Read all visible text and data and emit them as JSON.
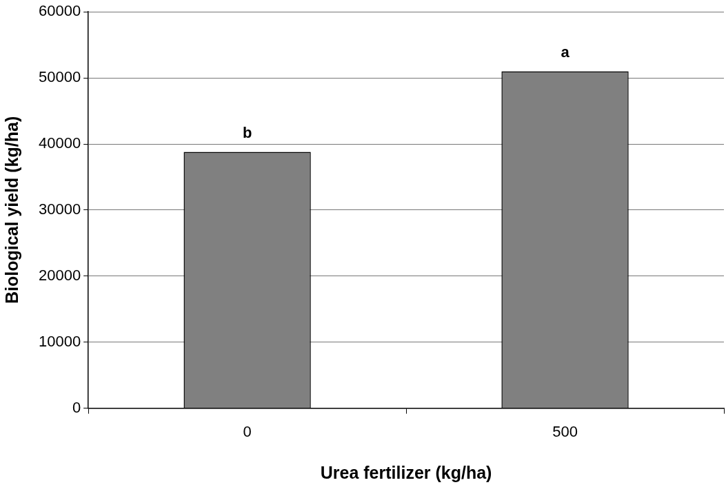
{
  "chart_data": {
    "type": "bar",
    "xlabel": "Urea fertilizer (kg/ha)",
    "ylabel": "Biological yield (kg/ha)",
    "categories": [
      "0",
      "500"
    ],
    "values": [
      38800,
      51000
    ],
    "color": "#808080",
    "ylim": [
      0,
      60000
    ],
    "yticks": [
      0,
      10000,
      20000,
      30000,
      40000,
      50000,
      60000
    ],
    "grid": "y",
    "legend": false,
    "annotations": [
      {
        "text": "b",
        "x": "0",
        "y": 38800
      },
      {
        "text": "a",
        "x": "500",
        "y": 51000
      }
    ]
  }
}
